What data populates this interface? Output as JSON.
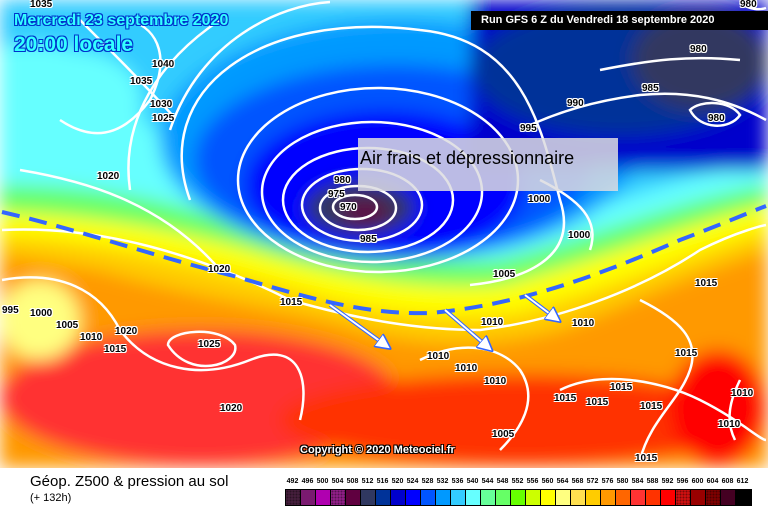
{
  "header": {
    "date": "Mercredi 23 septembre 2020",
    "local_time": "20:00 locale",
    "run": "Run GFS 6 Z du Vendredi 18 septembre 2020"
  },
  "annotation": "Air frais et dépressionnaire",
  "copyright": "Copyright © 2020 Meteociel.fr",
  "footer": {
    "title": "Géop. Z500 & pression au sol",
    "lead_time": "(+ 132h)"
  },
  "isobar_labels": [
    "1035",
    "1040",
    "1035",
    "1030",
    "1025",
    "1020",
    "1020",
    "1015",
    "1005",
    "1010",
    "1015",
    "1020",
    "1025",
    "1020",
    "1000",
    "995",
    "975",
    "980",
    "970",
    "985",
    "995",
    "990",
    "985",
    "980",
    "980",
    "980",
    "1000",
    "1000",
    "1005",
    "1010",
    "1010",
    "1015",
    "1010",
    "1010",
    "1010",
    "1015",
    "1015",
    "1015",
    "1015",
    "1015",
    "1010",
    "1010",
    "1005",
    "1015"
  ],
  "legend": {
    "labels": [
      "492",
      "496",
      "500",
      "504",
      "508",
      "512",
      "516",
      "520",
      "524",
      "528",
      "532",
      "536",
      "540",
      "544",
      "548",
      "552",
      "556",
      "560",
      "564",
      "568",
      "572",
      "576",
      "580",
      "584",
      "588",
      "592",
      "596",
      "600",
      "604",
      "608",
      "612"
    ],
    "colors": [
      "#4a2040",
      "#7a1a70",
      "#b000b0",
      "#9a2090",
      "#600040",
      "#303860",
      "#003399",
      "#0000cc",
      "#0000ff",
      "#0055ff",
      "#0099ff",
      "#33ccff",
      "#66ffff",
      "#66ff99",
      "#66ff66",
      "#66ff00",
      "#ccff00",
      "#ffff00",
      "#ffff80",
      "#ffe050",
      "#ffcc00",
      "#ff9900",
      "#ff6600",
      "#ff3333",
      "#ff3300",
      "#ff0000",
      "#dd1111",
      "#990000",
      "#880000",
      "#440022",
      "#000000"
    ],
    "dotted": [
      "492",
      "504",
      "596",
      "604"
    ]
  },
  "front_color": "#3366ff",
  "arrow_color": "#ffffff"
}
